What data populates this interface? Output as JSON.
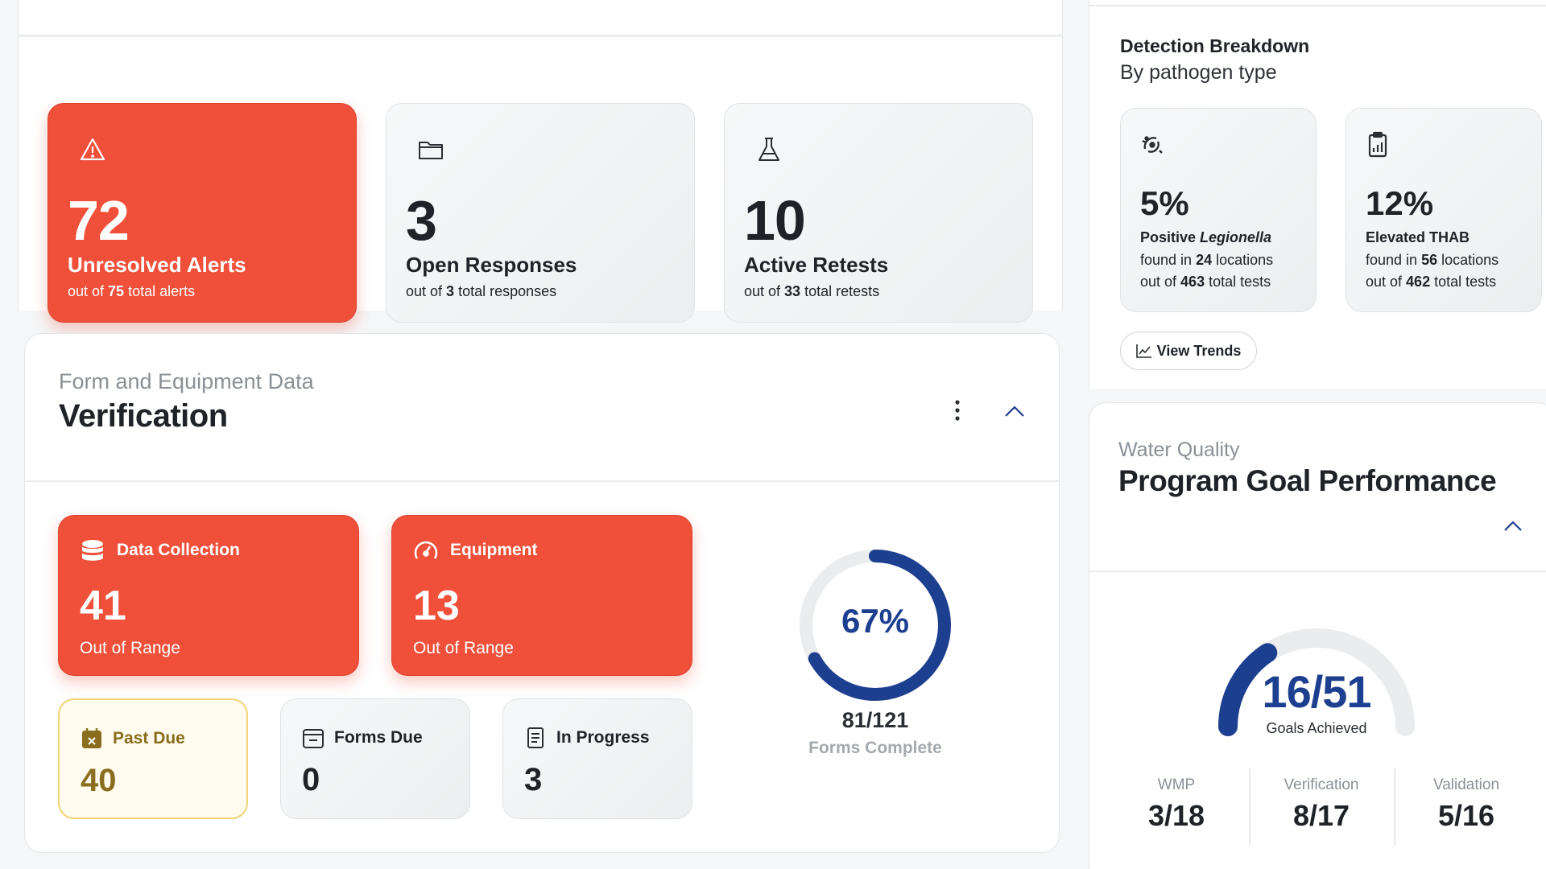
{
  "alerts": [
    {
      "value": "72",
      "label": "Unresolved Alerts",
      "sub_prefix": "out of ",
      "sub_value": "75",
      "sub_suffix": " total alerts",
      "icon": "warning-icon",
      "style": "red"
    },
    {
      "value": "3",
      "label": "Open Responses",
      "sub_prefix": "out of ",
      "sub_value": "3",
      "sub_suffix": " total responses",
      "icon": "folder-icon",
      "style": "grey"
    },
    {
      "value": "10",
      "label": "Active Retests",
      "sub_prefix": "out of ",
      "sub_value": "33",
      "sub_suffix": " total retests",
      "icon": "flask-icon",
      "style": "grey"
    }
  ],
  "verification": {
    "eyebrow": "Form and Equipment Data",
    "title": "Verification",
    "tiles": [
      {
        "heading": "Data Collection",
        "value": "41",
        "sub": "Out of Range",
        "icon": "database-icon"
      },
      {
        "heading": "Equipment",
        "value": "13",
        "sub": "Out of Range",
        "icon": "gauge-icon"
      }
    ],
    "minis": [
      {
        "heading": "Past Due",
        "value": "40",
        "icon": "calendar-x-icon"
      },
      {
        "heading": "Forms Due",
        "value": "0",
        "icon": "calendar-minus-icon"
      },
      {
        "heading": "In Progress",
        "value": "3",
        "icon": "document-icon"
      }
    ],
    "donut": {
      "percent_label": "67%",
      "fraction": "81/121",
      "caption": "Forms Complete",
      "completed": 81,
      "total": 121
    }
  },
  "detection": {
    "title": "Detection Breakdown",
    "subtitle": "By pathogen type",
    "cards": [
      {
        "value": "5%",
        "l1_prefix": "Positive ",
        "l1_italic": "Legionella",
        "l2_prefix": "found in ",
        "l2_value": "24",
        "l2_suffix": " locations",
        "l3_prefix": "out of ",
        "l3_value": "463",
        "l3_suffix": " total tests",
        "icon": "bacteria-icon"
      },
      {
        "value": "12%",
        "l1_prefix": "Elevated THAB",
        "l1_italic": "",
        "l2_prefix": "found in ",
        "l2_value": "56",
        "l2_suffix": " locations",
        "l3_prefix": "out of ",
        "l3_value": "462",
        "l3_suffix": " total tests",
        "icon": "clipboard-chart-icon"
      }
    ],
    "view_trends_label": "View Trends"
  },
  "program_goals": {
    "eyebrow": "Water Quality",
    "title": "Program Goal Performance",
    "gauge_value": "16/51",
    "gauge_caption": "Goals Achieved",
    "achieved": 16,
    "total": 51,
    "metrics": [
      {
        "label": "WMP",
        "value": "3/18"
      },
      {
        "label": "Verification",
        "value": "8/17"
      },
      {
        "label": "Validation",
        "value": "5/16"
      }
    ]
  },
  "colors": {
    "accent_red": "#f0503a",
    "accent_blue": "#1d3f8f",
    "warning_yellow": "#8a6d1e"
  }
}
